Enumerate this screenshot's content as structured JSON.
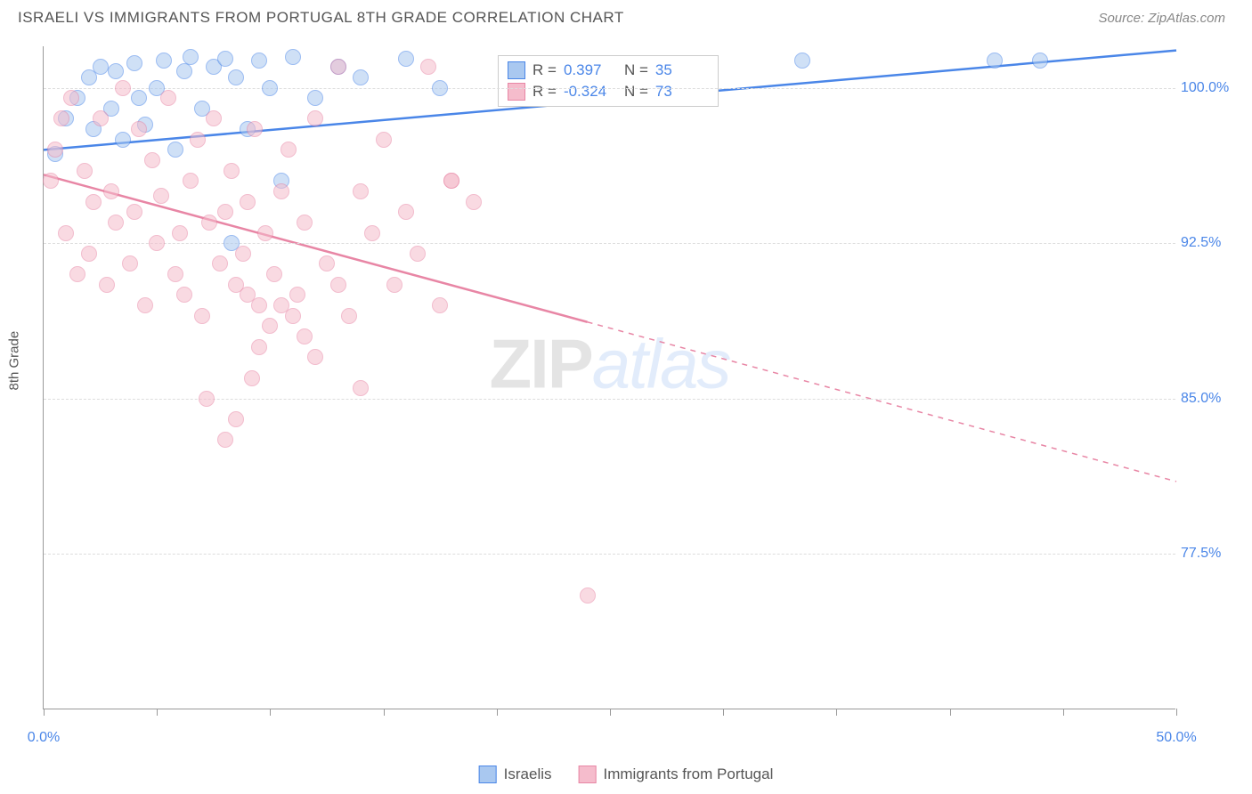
{
  "header": {
    "title": "ISRAELI VS IMMIGRANTS FROM PORTUGAL 8TH GRADE CORRELATION CHART",
    "source": "Source: ZipAtlas.com"
  },
  "chart": {
    "type": "scatter",
    "y_axis_label": "8th Grade",
    "xlim": [
      0,
      50
    ],
    "ylim": [
      70,
      102
    ],
    "x_ticks": [
      0,
      5,
      10,
      15,
      20,
      25,
      30,
      35,
      40,
      45,
      50
    ],
    "x_tick_labels": {
      "0": "0.0%",
      "50": "50.0%"
    },
    "y_ticks": [
      77.5,
      85.0,
      92.5,
      100.0
    ],
    "y_tick_labels": [
      "77.5%",
      "85.0%",
      "92.5%",
      "100.0%"
    ],
    "grid_color": "#dddddd",
    "axis_color": "#999999",
    "background_color": "#ffffff",
    "marker_radius": 9,
    "marker_opacity": 0.55,
    "series": [
      {
        "name": "Israelis",
        "color_fill": "#a9c8f0",
        "color_stroke": "#4a86e8",
        "R": "0.397",
        "N": "35",
        "trend": {
          "x1": 0,
          "y1": 97.0,
          "x2": 50,
          "y2": 101.8,
          "solid_until_x": 50
        },
        "points": [
          [
            0.5,
            96.8
          ],
          [
            1.0,
            98.5
          ],
          [
            1.5,
            99.5
          ],
          [
            2.0,
            100.5
          ],
          [
            2.2,
            98.0
          ],
          [
            2.5,
            101.0
          ],
          [
            3.0,
            99.0
          ],
          [
            3.2,
            100.8
          ],
          [
            3.5,
            97.5
          ],
          [
            4.0,
            101.2
          ],
          [
            4.2,
            99.5
          ],
          [
            4.5,
            98.2
          ],
          [
            5.0,
            100.0
          ],
          [
            5.3,
            101.3
          ],
          [
            5.8,
            97.0
          ],
          [
            6.2,
            100.8
          ],
          [
            6.5,
            101.5
          ],
          [
            7.0,
            99.0
          ],
          [
            7.5,
            101.0
          ],
          [
            8.0,
            101.4
          ],
          [
            8.3,
            92.5
          ],
          [
            8.5,
            100.5
          ],
          [
            9.0,
            98.0
          ],
          [
            9.5,
            101.3
          ],
          [
            10.0,
            100.0
          ],
          [
            10.5,
            95.5
          ],
          [
            11.0,
            101.5
          ],
          [
            12.0,
            99.5
          ],
          [
            13.0,
            101.0
          ],
          [
            14.0,
            100.5
          ],
          [
            16.0,
            101.4
          ],
          [
            17.5,
            100.0
          ],
          [
            33.5,
            101.3
          ],
          [
            42.0,
            101.3
          ],
          [
            44.0,
            101.3
          ]
        ]
      },
      {
        "name": "Immigrants from Portugal",
        "color_fill": "#f5bccc",
        "color_stroke": "#e886a5",
        "R": "-0.324",
        "N": "73",
        "trend": {
          "x1": 0,
          "y1": 95.8,
          "x2": 50,
          "y2": 81.0,
          "solid_until_x": 24
        },
        "points": [
          [
            0.3,
            95.5
          ],
          [
            0.5,
            97.0
          ],
          [
            0.8,
            98.5
          ],
          [
            1.0,
            93.0
          ],
          [
            1.2,
            99.5
          ],
          [
            1.5,
            91.0
          ],
          [
            1.8,
            96.0
          ],
          [
            2.0,
            92.0
          ],
          [
            2.2,
            94.5
          ],
          [
            2.5,
            98.5
          ],
          [
            2.8,
            90.5
          ],
          [
            3.0,
            95.0
          ],
          [
            3.2,
            93.5
          ],
          [
            3.5,
            100.0
          ],
          [
            3.8,
            91.5
          ],
          [
            4.0,
            94.0
          ],
          [
            4.2,
            98.0
          ],
          [
            4.5,
            89.5
          ],
          [
            4.8,
            96.5
          ],
          [
            5.0,
            92.5
          ],
          [
            5.2,
            94.8
          ],
          [
            5.5,
            99.5
          ],
          [
            5.8,
            91.0
          ],
          [
            6.0,
            93.0
          ],
          [
            6.2,
            90.0
          ],
          [
            6.5,
            95.5
          ],
          [
            6.8,
            97.5
          ],
          [
            7.0,
            89.0
          ],
          [
            7.3,
            93.5
          ],
          [
            7.5,
            98.5
          ],
          [
            7.8,
            91.5
          ],
          [
            8.0,
            94.0
          ],
          [
            8.3,
            96.0
          ],
          [
            8.5,
            90.5
          ],
          [
            8.8,
            92.0
          ],
          [
            9.0,
            94.5
          ],
          [
            9.3,
            98.0
          ],
          [
            9.5,
            89.5
          ],
          [
            9.8,
            93.0
          ],
          [
            10.2,
            91.0
          ],
          [
            10.5,
            95.0
          ],
          [
            10.8,
            97.0
          ],
          [
            11.2,
            90.0
          ],
          [
            11.5,
            93.5
          ],
          [
            12.0,
            98.5
          ],
          [
            12.5,
            91.5
          ],
          [
            13.0,
            101.0
          ],
          [
            13.5,
            89.0
          ],
          [
            14.0,
            95.0
          ],
          [
            14.5,
            93.0
          ],
          [
            15.0,
            97.5
          ],
          [
            15.5,
            90.5
          ],
          [
            16.0,
            94.0
          ],
          [
            16.5,
            92.0
          ],
          [
            17.0,
            101.0
          ],
          [
            17.5,
            89.5
          ],
          [
            18.0,
            95.5
          ],
          [
            7.2,
            85.0
          ],
          [
            8.0,
            83.0
          ],
          [
            9.0,
            90.0
          ],
          [
            9.5,
            87.5
          ],
          [
            10.0,
            88.5
          ],
          [
            11.0,
            89.0
          ],
          [
            12.0,
            87.0
          ],
          [
            13.0,
            90.5
          ],
          [
            14.0,
            85.5
          ],
          [
            8.5,
            84.0
          ],
          [
            9.2,
            86.0
          ],
          [
            10.5,
            89.5
          ],
          [
            11.5,
            88.0
          ],
          [
            18.0,
            95.5
          ],
          [
            19.0,
            94.5
          ],
          [
            24.0,
            75.5
          ]
        ]
      }
    ]
  },
  "legend_bottom": [
    {
      "label": "Israelis",
      "fill": "#a9c8f0",
      "stroke": "#4a86e8"
    },
    {
      "label": "Immigrants from Portugal",
      "fill": "#f5bccc",
      "stroke": "#e886a5"
    }
  ],
  "watermark": {
    "part1": "ZIP",
    "part2": "atlas"
  }
}
